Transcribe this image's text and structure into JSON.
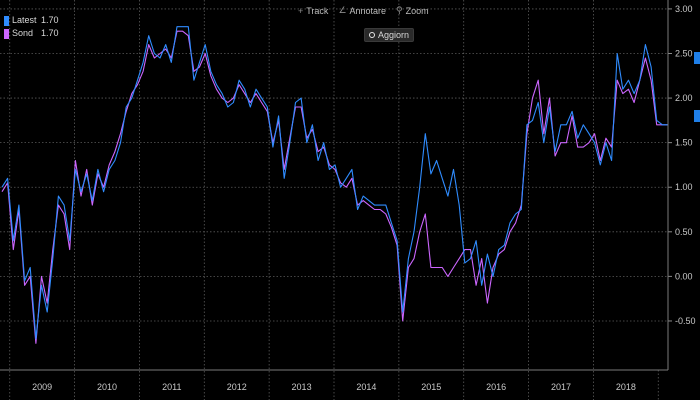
{
  "toolbar": {
    "track_label": "Track",
    "annotate_label": "Annotare",
    "zoom_label": "Zoom"
  },
  "update_button": {
    "label": "Aggiorn"
  },
  "legend": [
    {
      "name": "Latest",
      "value": "1.70",
      "color": "#2f8cff"
    },
    {
      "name": "Sond",
      "value": "1.70",
      "color": "#cc66ff"
    }
  ],
  "colors": {
    "background": "#000000",
    "grid": "#5a5a5a",
    "series_1": "#2f8cff",
    "series_2": "#cc66ff"
  },
  "chart_data": {
    "type": "line",
    "x_start_year": 2008.85,
    "x_end_year": 2019.15,
    "x_tick_labels": [
      "2009",
      "2010",
      "2011",
      "2012",
      "2013",
      "2014",
      "2015",
      "2016",
      "2017",
      "2018"
    ],
    "y_tick_labels": [
      "3.00",
      "2.50",
      "2.00",
      "1.50",
      "1.00",
      "0.50",
      "0.00",
      "-0.50"
    ],
    "ylim": [
      -1.05,
      3.1
    ],
    "grid": true,
    "legend_position": "top-left",
    "series": [
      {
        "name": "Latest",
        "values": [
          1.0,
          1.1,
          0.4,
          0.8,
          -0.05,
          0.1,
          -0.7,
          -0.1,
          -0.4,
          0.2,
          0.9,
          0.8,
          0.4,
          1.2,
          0.95,
          1.15,
          0.85,
          1.2,
          0.95,
          1.2,
          1.3,
          1.5,
          1.9,
          2.0,
          2.2,
          2.4,
          2.7,
          2.5,
          2.45,
          2.6,
          2.4,
          2.8,
          2.8,
          2.8,
          2.2,
          2.4,
          2.6,
          2.3,
          2.15,
          2.05,
          1.9,
          1.95,
          2.2,
          2.1,
          1.9,
          2.1,
          2.0,
          1.9,
          1.45,
          1.8,
          1.1,
          1.5,
          1.95,
          2.0,
          1.5,
          1.7,
          1.3,
          1.5,
          1.2,
          1.25,
          1.0,
          1.1,
          1.2,
          0.75,
          0.9,
          0.85,
          0.8,
          0.8,
          0.8,
          0.6,
          0.4,
          -0.4,
          0.2,
          0.5,
          1.0,
          1.6,
          1.15,
          1.3,
          1.1,
          0.9,
          1.2,
          0.8,
          0.15,
          0.2,
          0.4,
          -0.1,
          0.25,
          0.0,
          0.3,
          0.35,
          0.6,
          0.7,
          0.75,
          1.7,
          1.75,
          1.95,
          1.5,
          1.9,
          1.4,
          1.7,
          1.7,
          1.85,
          1.55,
          1.7,
          1.6,
          1.5,
          1.25,
          1.5,
          1.3,
          2.5,
          2.1,
          2.2,
          2.05,
          2.2,
          2.6,
          2.35,
          1.75,
          1.7,
          1.7
        ]
      },
      {
        "name": "Sond",
        "values": [
          0.95,
          1.05,
          0.3,
          0.75,
          -0.1,
          0.0,
          -0.75,
          0.0,
          -0.3,
          0.3,
          0.8,
          0.7,
          0.3,
          1.3,
          0.9,
          1.2,
          0.8,
          1.15,
          1.0,
          1.25,
          1.4,
          1.6,
          1.85,
          2.05,
          2.15,
          2.3,
          2.6,
          2.45,
          2.5,
          2.55,
          2.45,
          2.75,
          2.75,
          2.7,
          2.3,
          2.35,
          2.5,
          2.25,
          2.1,
          2.0,
          1.95,
          2.0,
          2.15,
          2.05,
          1.95,
          2.05,
          1.95,
          1.85,
          1.5,
          1.75,
          1.2,
          1.55,
          1.9,
          1.9,
          1.55,
          1.65,
          1.4,
          1.45,
          1.25,
          1.2,
          1.05,
          1.0,
          1.1,
          0.8,
          0.85,
          0.8,
          0.75,
          0.75,
          0.7,
          0.55,
          0.35,
          -0.5,
          0.1,
          0.2,
          0.5,
          0.7,
          0.1,
          0.1,
          0.1,
          0.0,
          0.1,
          0.2,
          0.3,
          0.3,
          -0.1,
          0.2,
          -0.3,
          0.1,
          0.25,
          0.3,
          0.5,
          0.6,
          0.8,
          1.6,
          2.0,
          2.2,
          1.6,
          2.0,
          1.35,
          1.5,
          1.5,
          1.8,
          1.45,
          1.45,
          1.5,
          1.6,
          1.3,
          1.55,
          1.45,
          2.2,
          2.05,
          2.1,
          1.95,
          2.2,
          2.45,
          2.2,
          1.7,
          1.7,
          1.7
        ]
      }
    ]
  }
}
